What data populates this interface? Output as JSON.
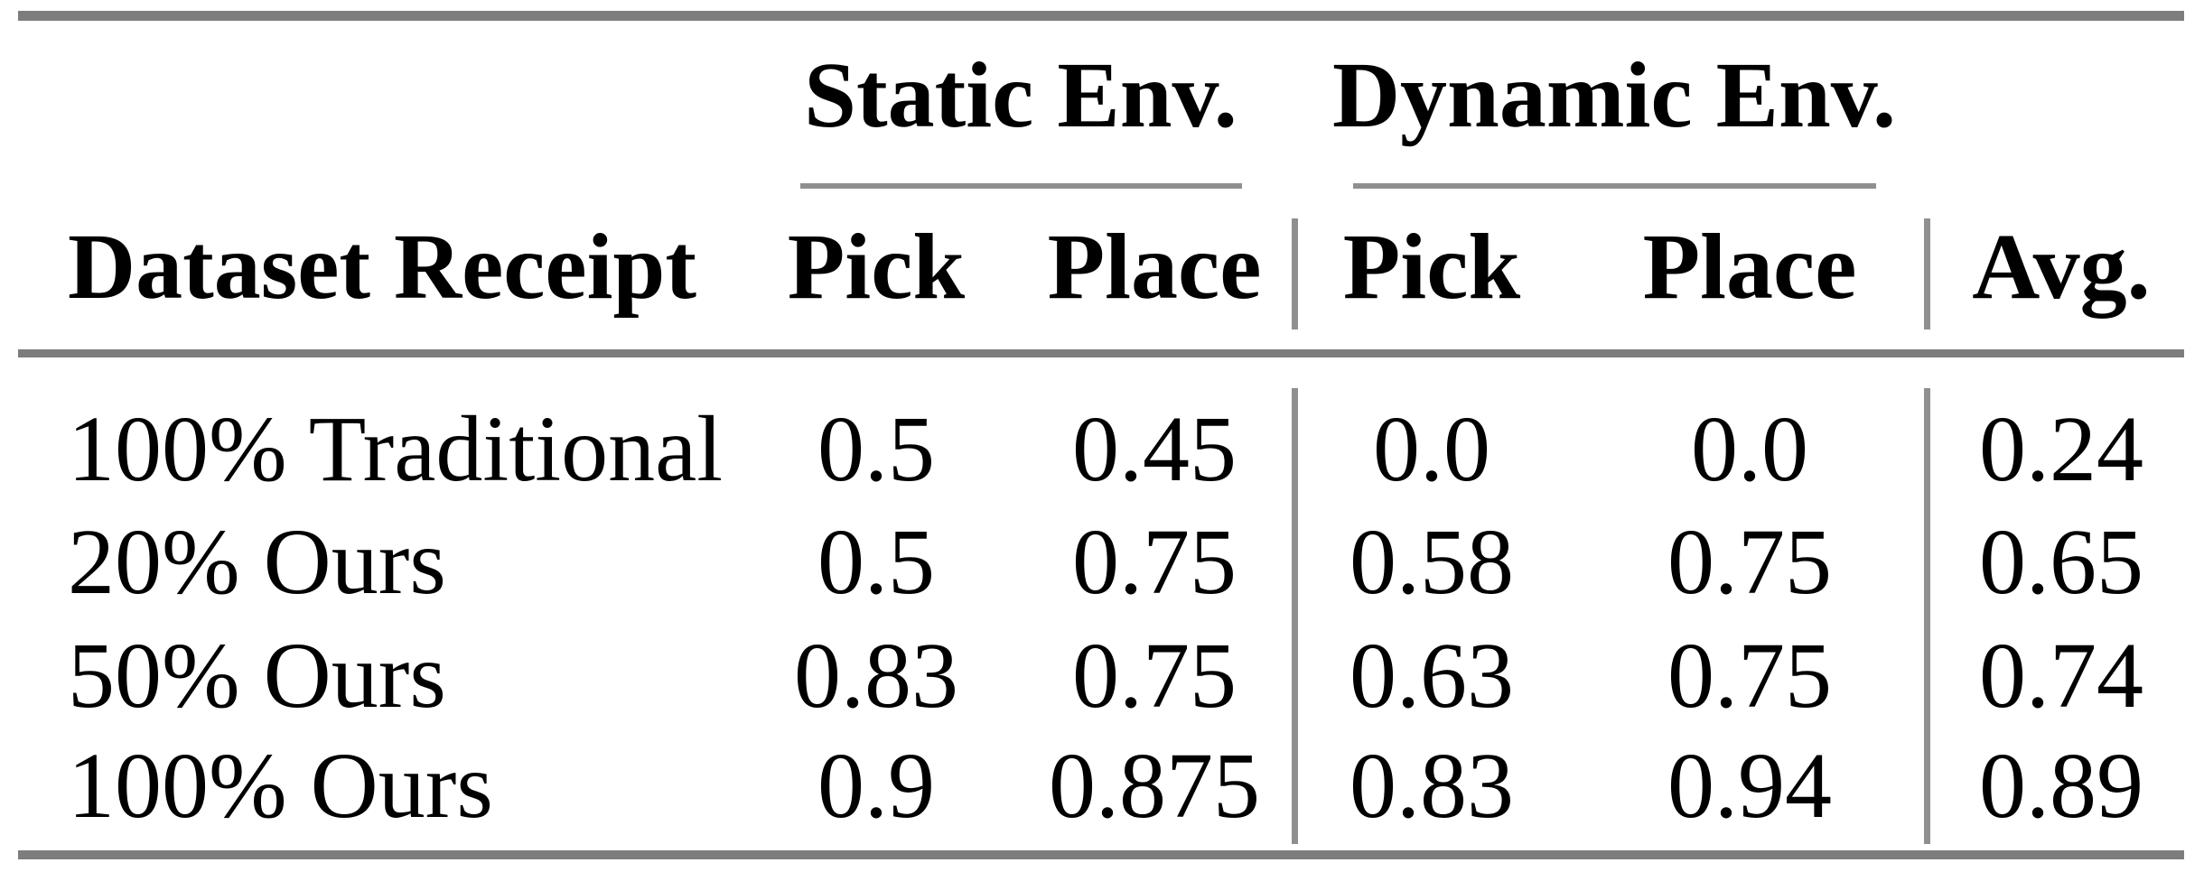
{
  "table": {
    "group_headers": [
      {
        "label": "Static Env."
      },
      {
        "label": "Dynamic Env."
      }
    ],
    "columns": {
      "dataset": "Dataset Receipt",
      "static_pick": "Pick",
      "static_place": "Place",
      "dynamic_pick": "Pick",
      "dynamic_place": "Place",
      "avg": "Avg."
    },
    "rows": [
      {
        "label": "100% Traditional",
        "static_pick": "0.5",
        "static_place": "0.45",
        "dynamic_pick": "0.0",
        "dynamic_place": "0.0",
        "avg": "0.24"
      },
      {
        "label": "20% Ours",
        "static_pick": "0.5",
        "static_place": "0.75",
        "dynamic_pick": "0.58",
        "dynamic_place": "0.75",
        "avg": "0.65"
      },
      {
        "label": "50% Ours",
        "static_pick": "0.83",
        "static_place": "0.75",
        "dynamic_pick": "0.63",
        "dynamic_place": "0.75",
        "avg": "0.74"
      },
      {
        "label": "100% Ours",
        "static_pick": "0.9",
        "static_place": "0.875",
        "dynamic_pick": "0.83",
        "dynamic_place": "0.94",
        "avg": "0.89"
      }
    ],
    "colors": {
      "text": "#000000",
      "background": "#ffffff",
      "rule_thick": "#7d7d7d",
      "rule_thin": "#8f8f8f"
    }
  }
}
